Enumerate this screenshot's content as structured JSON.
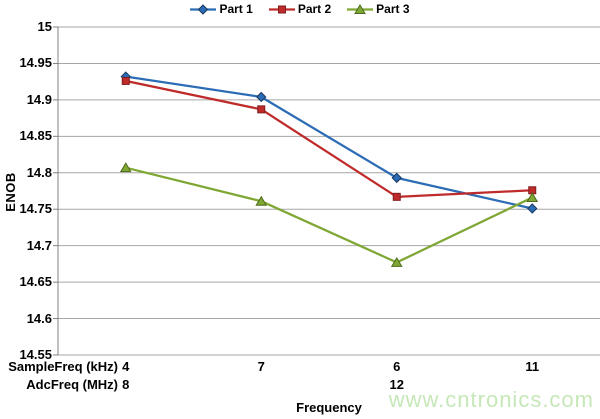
{
  "watermark": "www.cntronics.com",
  "chart_data": {
    "type": "line",
    "title": "",
    "xlabel": "Frequency",
    "ylabel": "ENOB",
    "ylim": [
      14.55,
      15
    ],
    "grid": true,
    "legend_position": "top-center",
    "y_tick_values": [
      15,
      14.95,
      14.9,
      14.85,
      14.8,
      14.75,
      14.7,
      14.65,
      14.6,
      14.55
    ],
    "y_tick_labels": [
      "15",
      "14.95",
      "14.9",
      "14.85",
      "14.8",
      "14.75",
      "14.7",
      "14.65",
      "14.6",
      "14.55"
    ],
    "x_axis_rows": [
      {
        "label": "SampleFreq (kHz)",
        "values": [
          "4",
          "7",
          "6",
          "11"
        ]
      },
      {
        "label": "AdcFreq (MHz)",
        "values": [
          "8",
          "",
          "12",
          ""
        ]
      }
    ],
    "series": [
      {
        "name": "Part 1",
        "marker": "diamond",
        "color": "#2B6CB5",
        "edge_color": "#17375E",
        "values": [
          14.932,
          14.904,
          14.793,
          14.751
        ]
      },
      {
        "name": "Part 2",
        "marker": "square",
        "color": "#BF2B2A",
        "edge_color": "#7F1D1C",
        "values": [
          14.926,
          14.887,
          14.767,
          14.776
        ]
      },
      {
        "name": "Part 3",
        "marker": "triangle",
        "color": "#7FA733",
        "edge_color": "#4F6A1D",
        "values": [
          14.807,
          14.761,
          14.677,
          14.766
        ]
      }
    ],
    "colors": {
      "gridline": "#A6A6A6",
      "axis": "#808080",
      "text": "#000000",
      "watermark": "#C6E8B8"
    }
  }
}
